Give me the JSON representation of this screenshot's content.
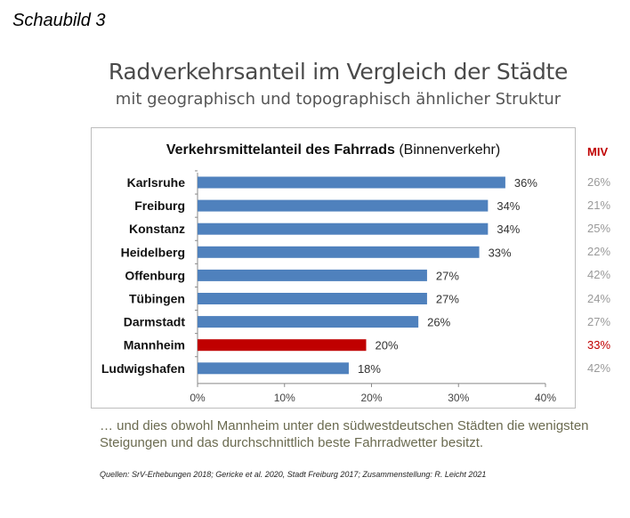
{
  "figure_label": "Schaubild 3",
  "title": "Radverkehrsanteil im Vergleich der Städte",
  "subtitle": "mit geographisch und topographisch ähnlicher Struktur",
  "miv": {
    "header": "MIV",
    "values": [
      "26%",
      "21%",
      "25%",
      "22%",
      "42%",
      "24%",
      "27%",
      "33%",
      "42%"
    ]
  },
  "note": "… und dies obwohl Mannheim unter den südwestdeutschen Städten die wenigsten Steigungen und das durchschnittlich beste Fahrradwetter besitzt.",
  "sources": "Quellen: SrV-Erhebungen 2018; Gericke et al. 2020, Stadt Freiburg 2017; Zusammenstellung: R. Leicht 2021",
  "chart_data": {
    "type": "bar",
    "orientation": "horizontal",
    "title_bold": "Verkehrsmittelanteil des Fahrrads",
    "title_rest": "(Binnenverkehr)",
    "categories": [
      "Karlsruhe",
      "Freiburg",
      "Konstanz",
      "Heidelberg",
      "Offenburg",
      "Tübingen",
      "Darmstadt",
      "Mannheim",
      "Ludwigshafen"
    ],
    "values": [
      36,
      34,
      34,
      33,
      27,
      27,
      26,
      20,
      18
    ],
    "data_labels": [
      "36%",
      "34%",
      "34%",
      "33%",
      "27%",
      "27%",
      "26%",
      "20%",
      "18%"
    ],
    "xlim": [
      0,
      40
    ],
    "xticks": [
      "0%",
      "10%",
      "20%",
      "30%",
      "40%"
    ],
    "grid": false,
    "colors": {
      "default": "#4f81bd",
      "highlight": "#c00000"
    },
    "highlight": "Mannheim"
  }
}
